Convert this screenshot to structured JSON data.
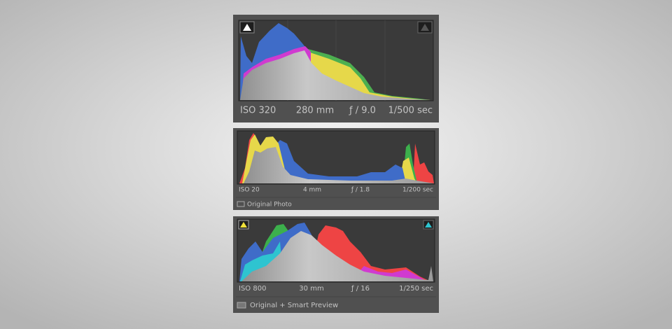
{
  "panels": [
    {
      "iso": "ISO 320",
      "focal": "280 mm",
      "aperture": "ƒ / 9.0",
      "shutter": "1/500 sec"
    },
    {
      "iso": "ISO 20",
      "focal": "4 mm",
      "aperture": "ƒ / 1.8",
      "shutter": "1/200 sec",
      "footer": "Original Photo"
    },
    {
      "iso": "ISO 800",
      "focal": "30 mm",
      "aperture": "ƒ / 16",
      "shutter": "1/250 sec",
      "footer": "Original + Smart Preview"
    }
  ]
}
